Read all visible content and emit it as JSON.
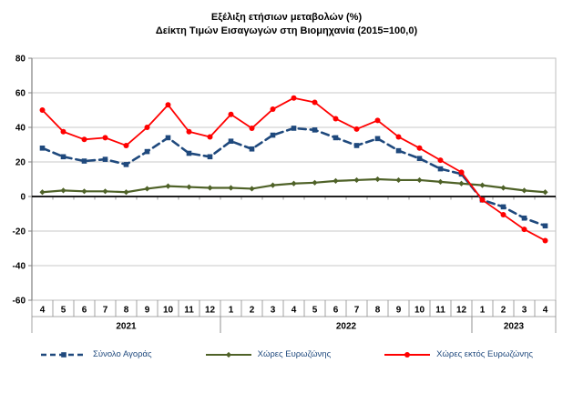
{
  "title": {
    "line1": "Εξέλιξη ετήσιων μεταβολών (%)",
    "line2": "Δείκτη Τιμών Εισαγωγών στη Βιομηχανία (2015=100,0)"
  },
  "chart_data": {
    "type": "line",
    "title": "Εξέλιξη ετήσιων μεταβολών (%) Δείκτη Τιμών Εισαγωγών στη Βιομηχανία (2015=100,0)",
    "grid": true,
    "legend_position": "bottom",
    "ylim": [
      -60,
      80
    ],
    "y_tick_step": 20,
    "y_tick_labels": [
      "80",
      "60",
      "40",
      "20",
      "0",
      "-20",
      "-40",
      "-60"
    ],
    "x_month_labels": [
      "4",
      "5",
      "6",
      "7",
      "8",
      "9",
      "10",
      "11",
      "12",
      "1",
      "2",
      "3",
      "4",
      "5",
      "6",
      "7",
      "8",
      "9",
      "10",
      "11",
      "12",
      "1",
      "2",
      "3",
      "4"
    ],
    "year_groups": [
      {
        "label": "2021",
        "count": 9
      },
      {
        "label": "2022",
        "count": 12
      },
      {
        "label": "2023",
        "count": 4
      }
    ],
    "series": [
      {
        "name": "Σύνολο Αγοράς",
        "color": "#1F497D",
        "line_style": "dashed",
        "marker": "square",
        "values": [
          28,
          23,
          20.5,
          21.5,
          18.5,
          26,
          34,
          25,
          23,
          32,
          27.5,
          35.5,
          39.5,
          38.5,
          34,
          29.5,
          33.5,
          26.5,
          22,
          16,
          13,
          -2,
          -6,
          -12.5,
          -17
        ]
      },
      {
        "name": "Χώρες Ευρωζώνης",
        "color": "#4F6228",
        "line_style": "solid",
        "marker": "diamond",
        "values": [
          2.5,
          3.5,
          3,
          3,
          2.5,
          4.5,
          6,
          5.5,
          5,
          5,
          4.5,
          6.5,
          7.5,
          8,
          9,
          9.5,
          10,
          9.5,
          9.5,
          8.5,
          7.5,
          6.5,
          5,
          3.5,
          2.5
        ]
      },
      {
        "name": "Χώρες εκτός Ευρωζώνης",
        "color": "#FF0000",
        "line_style": "solid",
        "marker": "circle",
        "values": [
          50,
          37.5,
          33,
          34,
          29.5,
          40,
          53,
          37.5,
          34.5,
          47.5,
          39.5,
          50.5,
          57,
          54.5,
          45,
          39,
          44,
          34.5,
          28,
          21,
          14,
          -2,
          -10.5,
          -19,
          -25.5
        ]
      }
    ]
  },
  "colors": {
    "gridline": "#C9C9C9",
    "plot_border": "#BFBFBF",
    "axis_line": "#808080",
    "zero_axis": "#000000",
    "band_line": "#8C8C8C",
    "tick_text": "#000000"
  }
}
